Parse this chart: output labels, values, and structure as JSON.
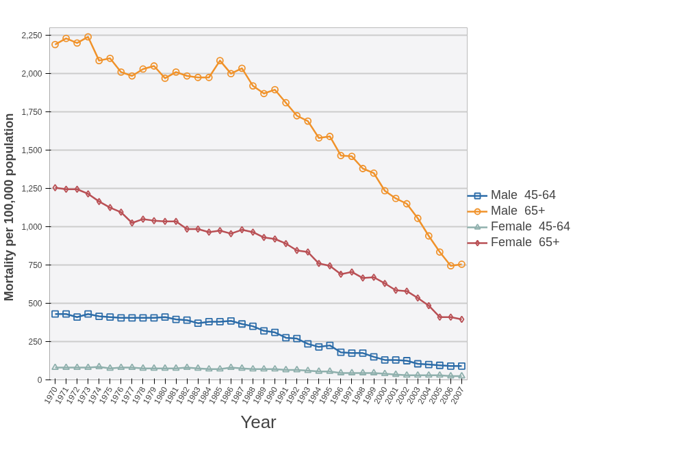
{
  "chart_data": {
    "type": "line",
    "xlabel": "Year",
    "ylabel": "Mortality per  100,000  population",
    "categories": [
      "1970",
      "1971",
      "1972",
      "1973",
      "1974",
      "1975",
      "1976",
      "1977",
      "1978",
      "1979",
      "1980",
      "1981",
      "1982",
      "1983",
      "1984",
      "1985",
      "1986",
      "1987",
      "1988",
      "1989",
      "1990",
      "1991",
      "1992",
      "1993",
      "1994",
      "1995",
      "1996",
      "1997",
      "1998",
      "1999",
      "2000",
      "2001",
      "2002",
      "2003",
      "2004",
      "2005",
      "2006",
      "2007"
    ],
    "series": [
      {
        "name": "Male  45-64",
        "color": "#2c6ca8",
        "marker": "square",
        "values": [
          430,
          430,
          410,
          430,
          415,
          410,
          405,
          405,
          405,
          405,
          410,
          395,
          390,
          370,
          380,
          380,
          385,
          365,
          350,
          320,
          310,
          275,
          270,
          235,
          215,
          225,
          180,
          175,
          175,
          150,
          130,
          130,
          125,
          105,
          100,
          95,
          90,
          90
        ]
      },
      {
        "name": "Male  65+",
        "color": "#f0922a",
        "marker": "circle",
        "values": [
          2190,
          2230,
          2200,
          2240,
          2085,
          2100,
          2010,
          1985,
          2030,
          2050,
          1970,
          2010,
          1985,
          1975,
          1975,
          2085,
          2000,
          2035,
          1920,
          1870,
          1895,
          1810,
          1725,
          1690,
          1580,
          1590,
          1465,
          1460,
          1380,
          1350,
          1235,
          1185,
          1150,
          1055,
          940,
          835,
          745,
          755
        ]
      },
      {
        "name": "Female  45-64",
        "color": "#8fb0ad",
        "marker": "triangle",
        "values": [
          80,
          80,
          80,
          80,
          85,
          75,
          80,
          80,
          75,
          75,
          75,
          75,
          80,
          75,
          70,
          70,
          80,
          75,
          70,
          70,
          70,
          65,
          65,
          60,
          55,
          55,
          45,
          45,
          45,
          45,
          40,
          35,
          30,
          30,
          30,
          30,
          25,
          25
        ]
      },
      {
        "name": "Female  65+",
        "color": "#b95055",
        "marker": "diamond",
        "values": [
          1255,
          1245,
          1245,
          1215,
          1165,
          1125,
          1095,
          1025,
          1050,
          1040,
          1035,
          1035,
          985,
          985,
          965,
          975,
          955,
          980,
          965,
          930,
          920,
          890,
          845,
          835,
          760,
          745,
          690,
          705,
          665,
          670,
          630,
          585,
          580,
          535,
          485,
          410,
          410,
          395
        ]
      }
    ],
    "ylim": [
      0,
      2300
    ],
    "yticks": [
      0,
      250,
      500,
      750,
      {
        "value": 1000,
        "label": "1,000"
      },
      {
        "value": 1250,
        "label": "1,250"
      },
      {
        "value": 1500,
        "label": "1,500"
      },
      {
        "value": 1750,
        "label": "1,750"
      },
      {
        "value": 2000,
        "label": "2,000"
      },
      {
        "value": 2250,
        "label": "2,250"
      }
    ],
    "grid": "y",
    "legend": "right",
    "line_style": "solid"
  }
}
